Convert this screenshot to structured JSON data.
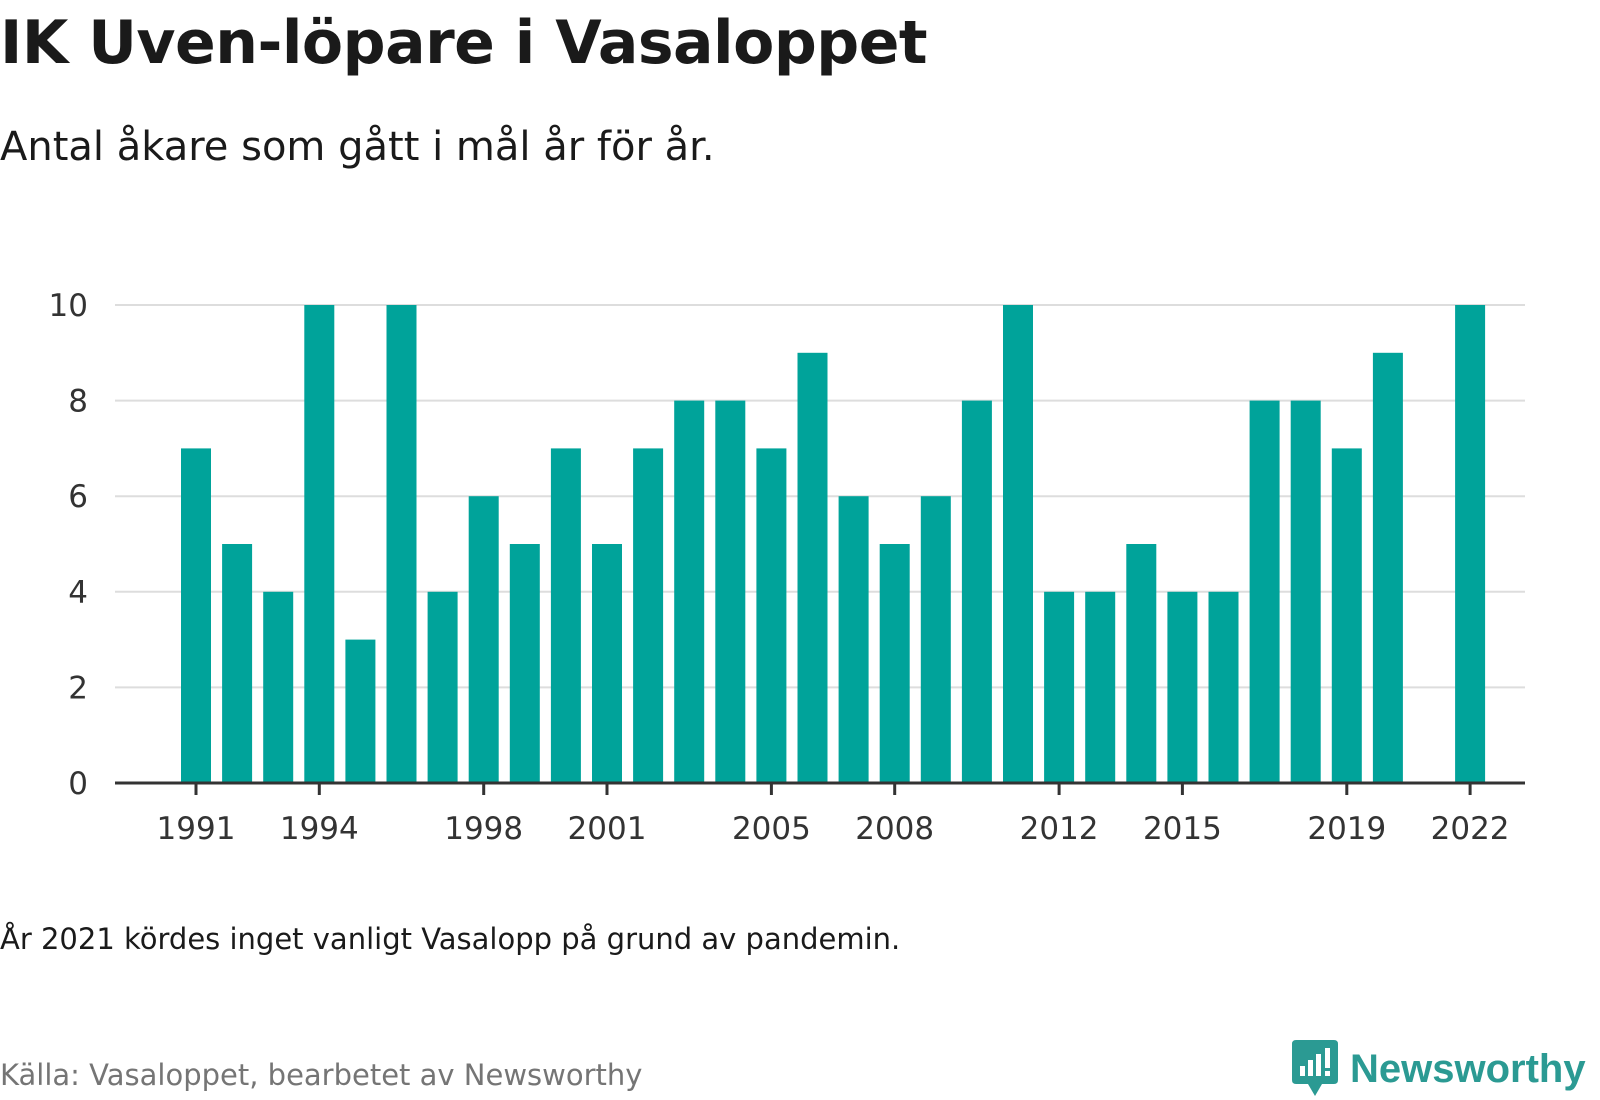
{
  "chart_data": {
    "type": "bar",
    "title": "IK Uven-löpare i Vasaloppet",
    "subtitle": "Antal åkare som gått i mål år för år.",
    "xlabel": "",
    "ylabel": "",
    "ylim": [
      0,
      10
    ],
    "yticks": [
      0,
      2,
      4,
      6,
      8,
      10
    ],
    "xticks": [
      1991,
      1994,
      1998,
      2001,
      2005,
      2008,
      2012,
      2015,
      2019,
      2022
    ],
    "grid": true,
    "bar_color": "#00a39a",
    "categories": [
      1991,
      1992,
      1993,
      1994,
      1995,
      1996,
      1997,
      1998,
      1999,
      2000,
      2001,
      2002,
      2003,
      2004,
      2005,
      2006,
      2007,
      2008,
      2009,
      2010,
      2011,
      2012,
      2013,
      2014,
      2015,
      2016,
      2017,
      2018,
      2019,
      2020,
      2021,
      2022
    ],
    "values": [
      7,
      5,
      4,
      10,
      3,
      10,
      4,
      6,
      5,
      7,
      5,
      7,
      8,
      8,
      7,
      9,
      6,
      5,
      6,
      8,
      10,
      4,
      4,
      5,
      4,
      4,
      8,
      8,
      7,
      9,
      null,
      10
    ]
  },
  "note": "År 2021 kördes inget vanligt Vasalopp på grund av pandemin.",
  "source": "Källa: Vasaloppet, bearbetet av Newsworthy",
  "brand": {
    "name": "Newsworthy",
    "color": "#2b9a93",
    "icon": "newsworthy-logo-icon"
  }
}
